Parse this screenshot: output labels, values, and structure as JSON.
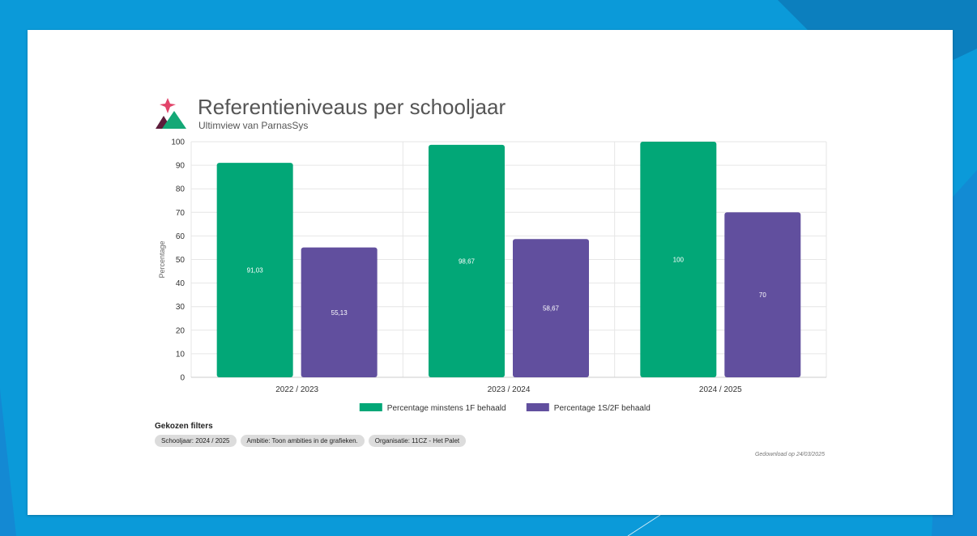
{
  "header": {
    "title": "Referentieniveaus per schooljaar",
    "subtitle": "Ultimview van ParnasSys"
  },
  "colors": {
    "background": "#0b9ad9",
    "series_green": "#02a777",
    "series_purple": "#614f9e",
    "logo_pink": "#e2446a",
    "logo_green": "#14a876",
    "logo_dark": "#5d1d3b"
  },
  "chart_data": {
    "type": "bar",
    "categories": [
      "2022 / 2023",
      "2023 / 2024",
      "2024 / 2025"
    ],
    "series": [
      {
        "name": "Percentage minstens 1F behaald",
        "values": [
          91.03,
          98.67,
          100
        ],
        "labels": [
          "91,03",
          "98,67",
          "100"
        ],
        "color": "#02a777"
      },
      {
        "name": "Percentage 1S/2F behaald",
        "values": [
          55.13,
          58.67,
          70
        ],
        "labels": [
          "55,13",
          "58,67",
          "70"
        ],
        "color": "#614f9e"
      }
    ],
    "ylabel": "Percentage",
    "xlabel": "",
    "ylim": [
      0,
      100
    ],
    "yticks": [
      0,
      10,
      20,
      30,
      40,
      50,
      60,
      70,
      80,
      90,
      100
    ],
    "grid": true,
    "legend": "bottom"
  },
  "filters": {
    "title": "Gekozen filters",
    "items": [
      "Schooljaar: 2024 / 2025",
      "Ambitie: Toon ambities in de grafieken.",
      "Organisatie: 11CZ - Het Palet"
    ]
  },
  "footer": {
    "downloaded": "Gedownload op 24/03/2025"
  },
  "logo": {
    "icon": "ultimview-logo-icon"
  }
}
